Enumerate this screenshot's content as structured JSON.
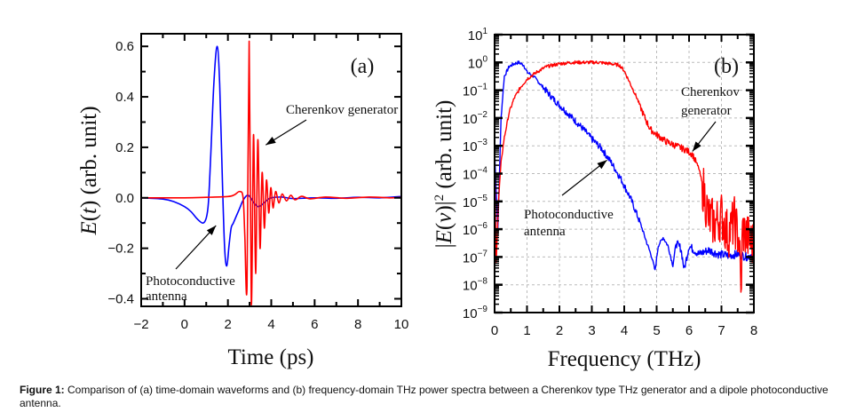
{
  "caption": {
    "label": "Figure 1:",
    "text": "Comparison of (a) time-domain waveforms and (b) frequency-domain THz power spectra between a Cherenkov type THz generator and a dipole photoconductive antenna."
  },
  "chart_data": [
    {
      "type": "line",
      "panel_label": "(a)",
      "title": "",
      "xlabel": "Time (ps)",
      "ylabel": "E(t) (arb. unit)",
      "xlim": [
        -2,
        10
      ],
      "ylim": [
        -0.43,
        0.65
      ],
      "xticks": [
        -2,
        0,
        2,
        4,
        6,
        8,
        10
      ],
      "xtick_labels": [
        "−2",
        "0",
        "2",
        "4",
        "6",
        "8",
        "10"
      ],
      "yticks": [
        -0.4,
        -0.2,
        0.0,
        0.2,
        0.4,
        0.6
      ],
      "ytick_labels": [
        "−0.4",
        "−0.2",
        "0.0",
        "0.2",
        "0.4",
        "0.6"
      ],
      "grid": false,
      "series": [
        {
          "name": "Photoconductive antenna",
          "color": "#0000ff",
          "x": [
            -2,
            -1,
            -0.5,
            0,
            0.3,
            0.6,
            0.85,
            1.0,
            1.1,
            1.2,
            1.35,
            1.5,
            1.62,
            1.75,
            1.85,
            1.95,
            2.05,
            2.15,
            2.25,
            2.4,
            2.55,
            2.7,
            2.9,
            3.05,
            3.2,
            3.4,
            3.6,
            3.8,
            4.0,
            4.5,
            5.0,
            6.0,
            7.0,
            8.0,
            9.0,
            10.0
          ],
          "y": [
            0.0,
            -0.005,
            -0.015,
            -0.035,
            -0.055,
            -0.085,
            -0.1,
            -0.08,
            -0.02,
            0.15,
            0.45,
            0.6,
            0.45,
            0.05,
            -0.2,
            -0.27,
            -0.19,
            -0.12,
            -0.1,
            -0.07,
            -0.04,
            -0.01,
            0.01,
            0.0,
            -0.02,
            -0.035,
            -0.025,
            -0.01,
            0.0,
            0.003,
            -0.003,
            0.0,
            -0.002,
            0.002,
            0.0,
            0.005
          ]
        },
        {
          "name": "Cherenkov generator",
          "color": "#ff0000",
          "x": [
            -2,
            0,
            1,
            2,
            2.3,
            2.55,
            2.7,
            2.78,
            2.88,
            2.98,
            3.08,
            3.18,
            3.28,
            3.38,
            3.48,
            3.58,
            3.68,
            3.78,
            3.88,
            3.98,
            4.08,
            4.2,
            4.35,
            4.5,
            4.7,
            4.9,
            5.1,
            5.4,
            5.8,
            6.5,
            7.5,
            8.5,
            9.5,
            10.0
          ],
          "y": [
            0.0,
            0.0,
            0.002,
            0.005,
            0.012,
            0.025,
            0.0,
            -0.15,
            -0.35,
            0.62,
            -0.42,
            0.25,
            -0.3,
            0.23,
            -0.2,
            0.1,
            -0.12,
            0.07,
            -0.06,
            0.04,
            -0.04,
            0.025,
            -0.02,
            0.015,
            -0.012,
            0.01,
            -0.008,
            0.006,
            -0.004,
            0.003,
            -0.002,
            0.003,
            0.0,
            0.002
          ]
        }
      ],
      "annotations": [
        {
          "text": "Cherenkov generator",
          "arrow_to": [
            3.5,
            0.22
          ]
        },
        {
          "text": "Photoconductive",
          "text2": "antenna",
          "arrow_to": [
            1.45,
            -0.11
          ]
        }
      ]
    },
    {
      "type": "line",
      "panel_label": "(b)",
      "title": "",
      "xlabel": "Frequency (THz)",
      "ylabel": "|E(ν)|² (arb. unit)",
      "xlim": [
        0,
        8
      ],
      "ylim": [
        1e-09,
        10
      ],
      "yscale": "log",
      "xticks": [
        0,
        1,
        2,
        3,
        4,
        5,
        6,
        7,
        8
      ],
      "xtick_labels": [
        "0",
        "1",
        "2",
        "3",
        "4",
        "5",
        "6",
        "7",
        "8"
      ],
      "yticks_exp": [
        1,
        0,
        -1,
        -2,
        -3,
        -4,
        -5,
        -6,
        -7,
        -8,
        -9
      ],
      "ytick_base": "10",
      "ytick_exps": [
        "1",
        "0",
        "−1",
        "−2",
        "−3",
        "−4",
        "−5",
        "−6",
        "−7",
        "−8",
        "−9"
      ],
      "grid": true,
      "series": [
        {
          "name": "Photoconductive antenna",
          "color": "#0000ff",
          "x": [
            0.0,
            0.1,
            0.15,
            0.2,
            0.3,
            0.45,
            0.6,
            0.75,
            0.9,
            1.0,
            1.2,
            1.5,
            1.8,
            2.1,
            2.4,
            2.7,
            3.0,
            3.3,
            3.6,
            3.9,
            4.2,
            4.5,
            4.7,
            4.85,
            4.95,
            5.05,
            5.2,
            5.35,
            5.5,
            5.6,
            5.75,
            5.85,
            6.0,
            6.3,
            6.6,
            6.9,
            7.2,
            7.5,
            7.8,
            8.0
          ],
          "log10y": [
            -3.2,
            -6.0,
            -4.0,
            -2.0,
            -0.5,
            -0.15,
            -0.05,
            0.0,
            -0.1,
            -0.35,
            -0.5,
            -0.9,
            -1.3,
            -1.65,
            -2.0,
            -2.35,
            -2.75,
            -3.1,
            -3.6,
            -4.2,
            -4.9,
            -5.8,
            -6.5,
            -7.0,
            -7.5,
            -6.6,
            -6.3,
            -6.6,
            -7.3,
            -6.5,
            -6.7,
            -7.45,
            -6.6,
            -6.9,
            -6.75,
            -6.9,
            -6.95,
            -6.9,
            -7.0,
            -6.85
          ]
        },
        {
          "name": "Cherenkov generator",
          "color": "#ff0000",
          "x": [
            0.0,
            0.05,
            0.12,
            0.2,
            0.3,
            0.45,
            0.6,
            0.8,
            1.0,
            1.3,
            1.6,
            2.0,
            2.4,
            2.8,
            3.2,
            3.6,
            3.85,
            4.0,
            4.2,
            4.4,
            4.6,
            4.8,
            5.0,
            5.3,
            5.6,
            5.9,
            6.1,
            6.3,
            6.45,
            6.6,
            6.8,
            7.0,
            7.2,
            7.4,
            7.55,
            7.6,
            7.65,
            7.8,
            8.0
          ],
          "log10y": [
            -3.3,
            -7.2,
            -5.0,
            -3.6,
            -2.7,
            -1.8,
            -1.3,
            -0.9,
            -0.6,
            -0.35,
            -0.15,
            -0.05,
            0.0,
            0.0,
            0.0,
            -0.05,
            -0.1,
            -0.3,
            -0.8,
            -1.3,
            -1.9,
            -2.4,
            -2.6,
            -2.85,
            -3.0,
            -3.15,
            -3.3,
            -3.8,
            -4.6,
            -5.6,
            -5.8,
            -5.5,
            -6.2,
            -5.7,
            -6.4,
            -8.5,
            -6.0,
            -6.3,
            -6.6
          ]
        }
      ],
      "annotations": [
        {
          "text": "Cherenkov",
          "text2": "generator",
          "arrow_to": [
            6.05,
            -3.2
          ]
        },
        {
          "text": "Photoconductive",
          "text2": "antenna",
          "arrow_to": [
            3.55,
            -3.45
          ]
        }
      ]
    }
  ]
}
